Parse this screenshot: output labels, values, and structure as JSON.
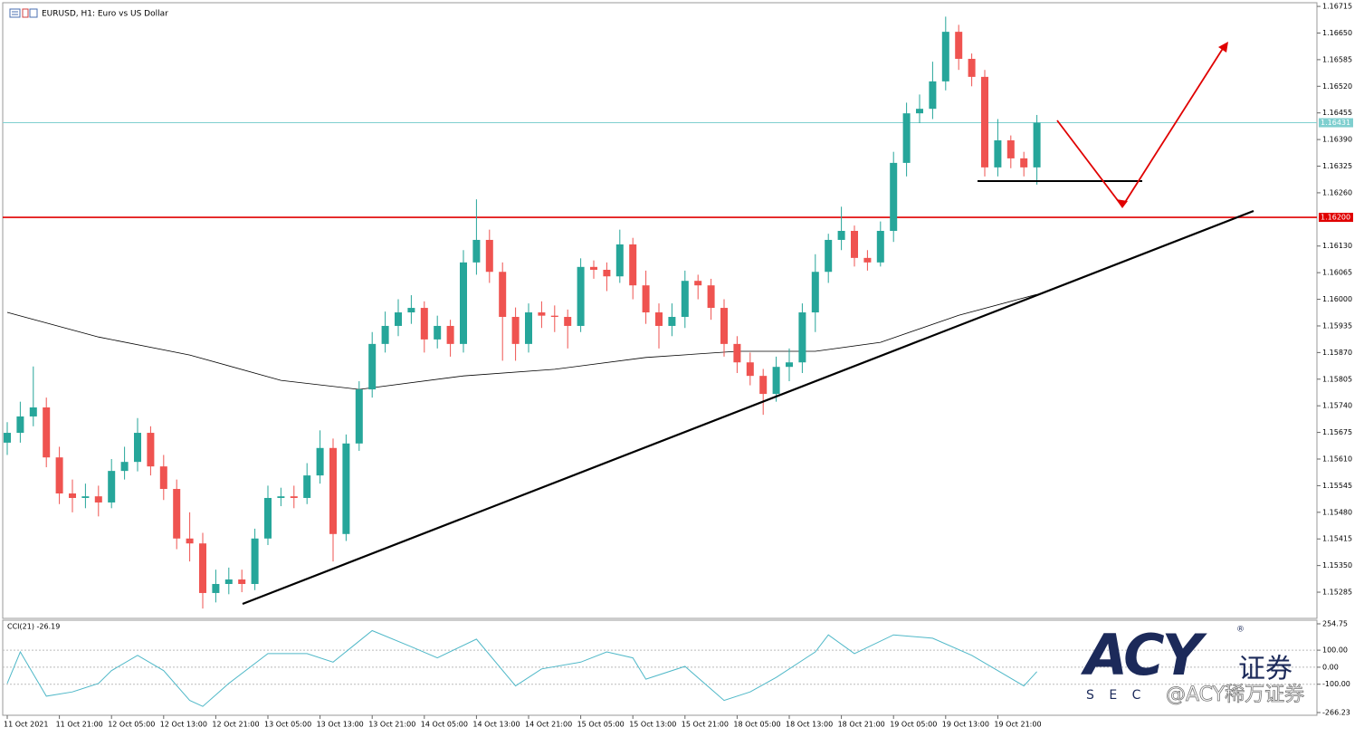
{
  "chart_data": {
    "type": "candlestick",
    "title": "EURUSD, H1:  Euro vs US Dollar",
    "categories": [
      "11 Oct 2021",
      null,
      null,
      null,
      "11 Oct 21:00",
      null,
      null,
      null,
      "12 Oct 05:00",
      null,
      null,
      null,
      "12 Oct 13:00",
      null,
      null,
      null,
      "12 Oct 21:00",
      null,
      null,
      null,
      "13 Oct 05:00",
      null,
      null,
      null,
      "13 Oct 13:00",
      null,
      null,
      null,
      "13 Oct 21:00",
      null,
      null,
      null,
      "14 Oct 05:00",
      null,
      null,
      null,
      "14 Oct 13:00",
      null,
      null,
      null,
      "14 Oct 21:00",
      null,
      null,
      null,
      "15 Oct 05:00",
      null,
      null,
      null,
      "15 Oct 13:00",
      null,
      null,
      null,
      "15 Oct 21:00",
      null,
      null,
      null,
      "18 Oct 05:00",
      null,
      null,
      null,
      "18 Oct 13:00",
      null,
      null,
      null,
      "18 Oct 21:00",
      null,
      null,
      null,
      "19 Oct 05:00",
      null,
      null,
      null,
      "19 Oct 13:00",
      null,
      null,
      null,
      "19 Oct 21:00",
      null,
      null,
      null
    ],
    "open": [
      1.1565,
      1.15674,
      1.15714,
      1.15736,
      1.15614,
      1.15526,
      1.15515,
      1.15519,
      1.15504,
      1.15581,
      1.15603,
      1.15674,
      1.15592,
      1.15537,
      1.15416,
      1.15404,
      1.15283,
      1.15305,
      1.15316,
      1.15305,
      1.15416,
      1.15515,
      1.15519,
      1.15515,
      1.1557,
      1.15637,
      1.15427,
      1.15648,
      1.1578,
      1.15891,
      1.15935,
      1.15968,
      1.15979,
      1.15902,
      1.15935,
      1.15891,
      1.1609,
      1.16145,
      1.16067,
      1.15957,
      1.15891,
      1.15968,
      1.1596,
      1.15957,
      1.15935,
      1.16079,
      1.16072,
      1.16056,
      1.16134,
      1.16034,
      1.15968,
      1.15935,
      1.15957,
      1.16045,
      1.16034,
      1.15979,
      1.15891,
      1.15846,
      1.15813,
      1.15769,
      1.15835,
      1.15846,
      1.15968,
      1.16067,
      1.16145,
      1.16167,
      1.16101,
      1.1609,
      1.16167,
      1.16333,
      1.16454,
      1.16465,
      1.16532,
      1.16653,
      1.16587,
      1.16543,
      1.16322,
      1.16388,
      1.16344,
      1.16322
    ],
    "high": [
      1.157,
      1.1575,
      1.15836,
      1.1576,
      1.1564,
      1.1556,
      1.1555,
      1.15545,
      1.1561,
      1.1564,
      1.1571,
      1.1569,
      1.1562,
      1.1556,
      1.1548,
      1.1543,
      1.1534,
      1.15345,
      1.1534,
      1.1544,
      1.15545,
      1.1554,
      1.15545,
      1.156,
      1.1568,
      1.1566,
      1.1567,
      1.158,
      1.1592,
      1.1597,
      1.16,
      1.1601,
      1.15995,
      1.1596,
      1.1595,
      1.1612,
      1.16244,
      1.1617,
      1.1609,
      1.1598,
      1.1599,
      1.15995,
      1.15985,
      1.15975,
      1.161,
      1.16095,
      1.1609,
      1.1617,
      1.1615,
      1.1607,
      1.1599,
      1.1599,
      1.1607,
      1.1606,
      1.1605,
      1.16,
      1.1591,
      1.1587,
      1.1583,
      1.1586,
      1.1588,
      1.1599,
      1.1611,
      1.1616,
      1.16226,
      1.1618,
      1.1612,
      1.1619,
      1.1636,
      1.1648,
      1.165,
      1.1658,
      1.1669,
      1.1667,
      1.166,
      1.1656,
      1.1644,
      1.164,
      1.1636,
      1.1645
    ],
    "low": [
      1.1562,
      1.1565,
      1.1569,
      1.1559,
      1.155,
      1.1548,
      1.1549,
      1.1547,
      1.1549,
      1.1556,
      1.1558,
      1.1557,
      1.1551,
      1.1539,
      1.1536,
      1.15245,
      1.1526,
      1.1528,
      1.15285,
      1.1529,
      1.154,
      1.15495,
      1.1549,
      1.155,
      1.1555,
      1.1536,
      1.1541,
      1.1563,
      1.1576,
      1.1587,
      1.1591,
      1.1594,
      1.1587,
      1.1588,
      1.1586,
      1.1587,
      1.1606,
      1.1604,
      1.1585,
      1.1585,
      1.1587,
      1.1593,
      1.1592,
      1.1588,
      1.1592,
      1.1605,
      1.1602,
      1.1604,
      1.16,
      1.1594,
      1.1588,
      1.1591,
      1.1593,
      1.16,
      1.1595,
      1.1586,
      1.1582,
      1.1579,
      1.15718,
      1.1575,
      1.158,
      1.1582,
      1.1592,
      1.1604,
      1.1612,
      1.1608,
      1.1607,
      1.1608,
      1.1614,
      1.163,
      1.1643,
      1.1644,
      1.1651,
      1.1656,
      1.1652,
      1.163,
      1.163,
      1.1632,
      1.163,
      1.1628
    ],
    "close": [
      1.15674,
      1.15714,
      1.15736,
      1.15614,
      1.15526,
      1.15515,
      1.15519,
      1.15504,
      1.15581,
      1.15603,
      1.15674,
      1.15592,
      1.15537,
      1.15416,
      1.15404,
      1.15283,
      1.15305,
      1.15316,
      1.15305,
      1.15416,
      1.15515,
      1.15519,
      1.15515,
      1.1557,
      1.15637,
      1.15427,
      1.15648,
      1.1578,
      1.15891,
      1.15935,
      1.15968,
      1.15979,
      1.15902,
      1.15935,
      1.15891,
      1.1609,
      1.16145,
      1.16067,
      1.15957,
      1.15891,
      1.15968,
      1.1596,
      1.15957,
      1.15935,
      1.16079,
      1.16072,
      1.16056,
      1.16134,
      1.16034,
      1.15968,
      1.15935,
      1.15957,
      1.16045,
      1.16034,
      1.15979,
      1.15891,
      1.15846,
      1.15813,
      1.15769,
      1.15835,
      1.15846,
      1.15968,
      1.16067,
      1.16145,
      1.16167,
      1.16101,
      1.1609,
      1.16167,
      1.16333,
      1.16454,
      1.16465,
      1.16532,
      1.16653,
      1.16587,
      1.16543,
      1.16322,
      1.16388,
      1.16344,
      1.16322,
      1.16431
    ],
    "up_color": "#26a69a",
    "down_color": "#ef5350",
    "ylim": [
      1.15221,
      1.16724
    ],
    "yticks": [
      1.16715,
      {
        "value": 1.1665,
        "label": "1.16650"
      },
      1.16585,
      {
        "value": 1.1652,
        "label": "1.16520"
      },
      1.16455,
      {
        "value": 1.1639,
        "label": "1.16390"
      },
      1.16325,
      {
        "value": 1.1626,
        "label": "1.16260"
      },
      {
        "value": 1.1613,
        "label": "1.16130"
      },
      1.16065,
      {
        "value": 1.16,
        "label": "1.16000"
      },
      1.15935,
      {
        "value": 1.1587,
        "label": "1.15870"
      },
      1.15805,
      {
        "value": 1.1574,
        "label": "1.15740"
      },
      1.15675,
      {
        "value": 1.1561,
        "label": "1.15610"
      },
      1.15545,
      {
        "value": 1.1548,
        "label": "1.15480"
      },
      1.15415,
      {
        "value": 1.1535,
        "label": "1.15350"
      },
      1.15285
    ],
    "price_lines": [
      {
        "value": 1.16431,
        "color": "#7fcfcf"
      },
      {
        "value": 1.162,
        "label": "1.16200",
        "color": "#e00000"
      }
    ],
    "moving_average": {
      "x": [
        0,
        7,
        14,
        21,
        27,
        35,
        42,
        49,
        56,
        62,
        67,
        73,
        79
      ],
      "values": [
        1.15968,
        1.15908,
        1.15864,
        1.15802,
        1.1578,
        1.15813,
        1.15829,
        1.15858,
        1.15873,
        1.15873,
        1.15895,
        1.15961,
        1.16012
      ],
      "color": "#000000"
    },
    "indicator": {
      "title": "CCI(21) -26.19",
      "x": [
        0,
        1,
        3,
        5,
        7,
        8,
        10,
        12,
        14,
        15,
        17,
        20,
        23,
        25,
        28,
        31,
        33,
        36,
        39,
        41,
        44,
        46,
        48,
        49,
        52,
        55,
        57,
        59,
        62,
        63,
        65,
        68,
        71,
        74,
        76,
        78,
        79
      ],
      "values": [
        -95,
        90,
        -170,
        -145,
        -95,
        -20,
        70,
        -20,
        -195,
        -230,
        -95,
        80,
        80,
        30,
        215,
        120,
        55,
        165,
        -110,
        -10,
        30,
        90,
        55,
        -70,
        5,
        -195,
        -145,
        -60,
        90,
        190,
        80,
        190,
        170,
        70,
        -20,
        -110,
        -26.19
      ],
      "color": "#4fb8c8",
      "ylim": [
        -266.23,
        254.75
      ],
      "yticks": [
        254.75,
        {
          "value": 100,
          "label": "100.00"
        },
        {
          "value": 0,
          "label": "0.00"
        },
        {
          "value": -100,
          "label": "-100.00"
        },
        -266.23
      ]
    }
  },
  "logo": {
    "brand": "ACY",
    "cn": "证券",
    "sub": "S E C",
    "watermark": "@ACY稀万证券"
  }
}
